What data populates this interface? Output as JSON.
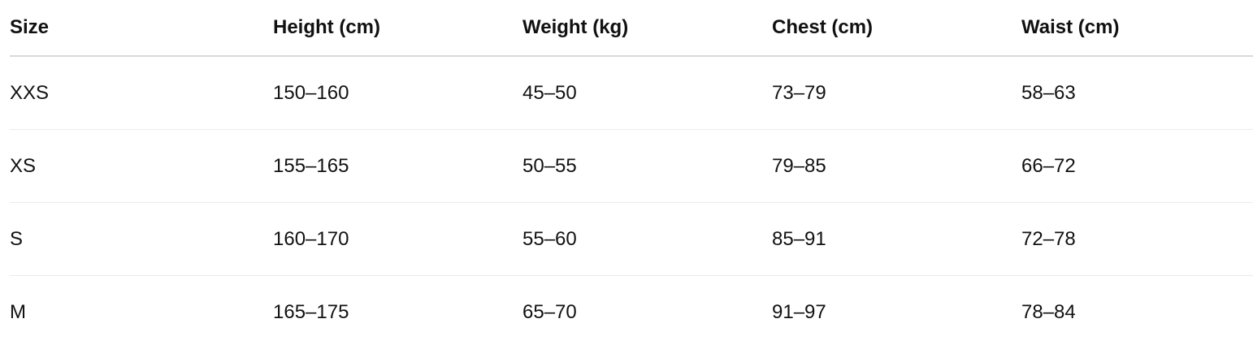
{
  "table": {
    "headers": [
      "Size",
      "Height (cm)",
      "Weight (kg)",
      "Chest (cm)",
      "Waist (cm)"
    ],
    "rows": [
      [
        "XXS",
        "150–160",
        "45–50",
        "73–79",
        "58–63"
      ],
      [
        "XS",
        "155–165",
        "50–55",
        "79–85",
        "66–72"
      ],
      [
        "S",
        "160–170",
        "55–60",
        "85–91",
        "72–78"
      ],
      [
        "M",
        "165–175",
        "65–70",
        "91–97",
        "78–84"
      ]
    ]
  }
}
